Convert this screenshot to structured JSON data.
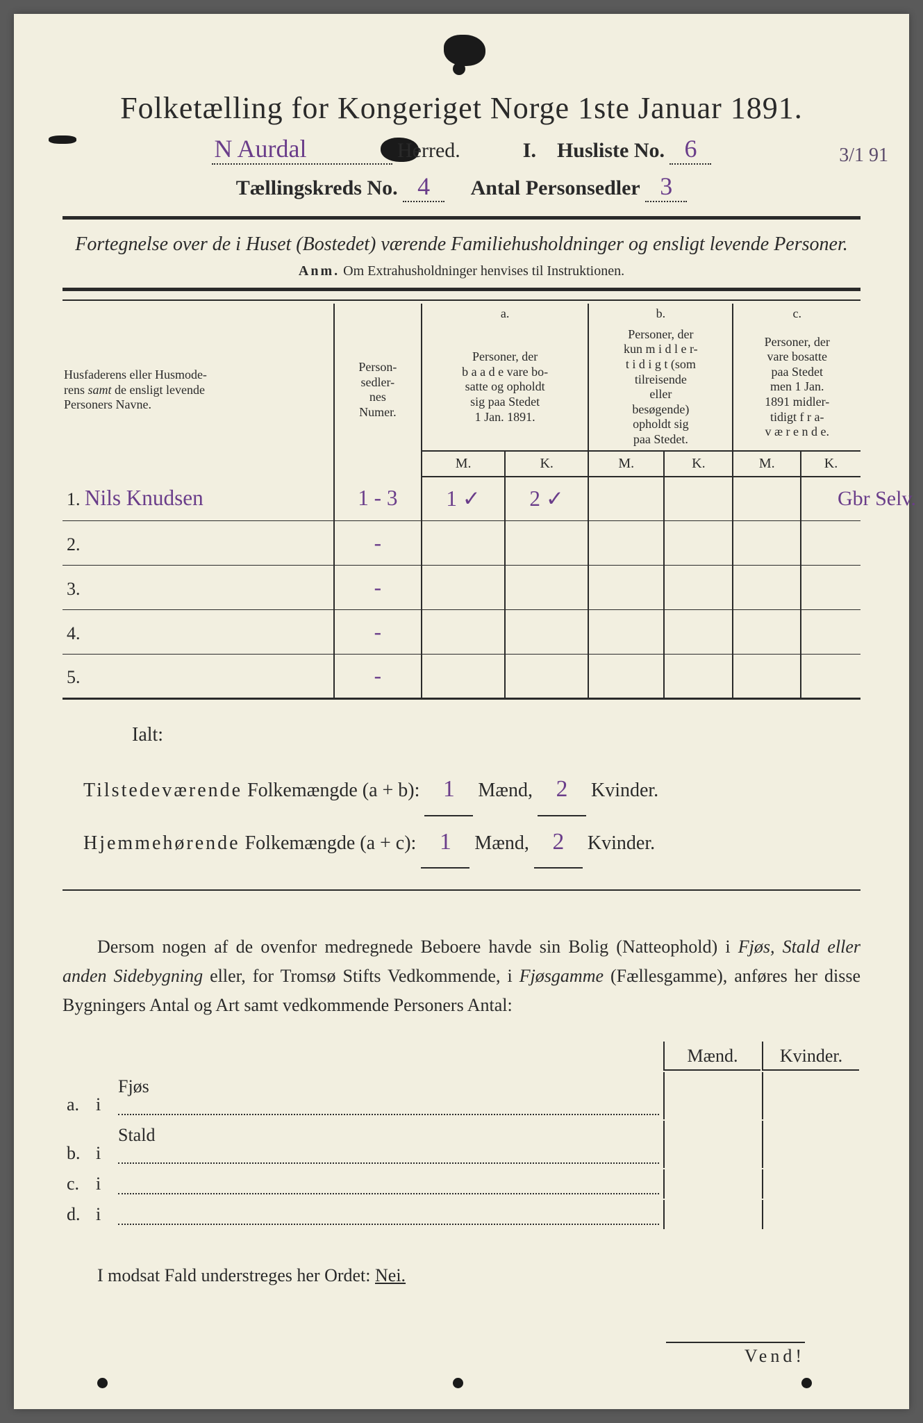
{
  "title": "Folketælling for Kongeriget Norge 1ste Januar 1891.",
  "header": {
    "herred_value": "N Aurdal",
    "herred_label": "Herred.",
    "skjema_label": "I.",
    "husliste_label": "Husliste No.",
    "husliste_value": "6",
    "date_margin": "3/1 91",
    "kreds_label": "Tællingskreds No.",
    "kreds_value": "4",
    "antal_label": "Antal Personsedler",
    "antal_value": "3"
  },
  "subtitle": "Fortegnelse over de i Huset (Bostedet) værende Familiehusholdninger og ensligt levende Personer.",
  "anm_label": "Anm.",
  "anm_text": "Om Extrahusholdninger henvises til Instruktionen.",
  "table": {
    "col_name": "Husfaderens eller Husmoderens samt de ensligt levende Personers Navne.",
    "col_numer": "Person-sedler-nes Numer.",
    "col_a_label": "a.",
    "col_a_text": "Personer, der baade vare bosatte og opholdt sig paa Stedet 1 Jan. 1891.",
    "col_b_label": "b.",
    "col_b_text": "Personer, der kun midlertidigt (som tilreisende eller besøgende) opholdt sig paa Stedet.",
    "col_c_label": "c.",
    "col_c_text": "Personer, der vare bosatte paa Stedet men 1 Jan. 1891 midlertidigt fraværende.",
    "mk_m": "M.",
    "mk_k": "K.",
    "rows": [
      {
        "n": "1.",
        "name": "Nils Knudsen",
        "numer": "1 - 3",
        "a_m": "1 ✓",
        "a_k": "2 ✓",
        "b_m": "",
        "b_k": "",
        "c_m": "",
        "c_k": "",
        "note": "Gbr Selv."
      },
      {
        "n": "2.",
        "name": "",
        "numer": "-",
        "a_m": "",
        "a_k": "",
        "b_m": "",
        "b_k": "",
        "c_m": "",
        "c_k": "",
        "note": ""
      },
      {
        "n": "3.",
        "name": "",
        "numer": "-",
        "a_m": "",
        "a_k": "",
        "b_m": "",
        "b_k": "",
        "c_m": "",
        "c_k": "",
        "note": ""
      },
      {
        "n": "4.",
        "name": "",
        "numer": "-",
        "a_m": "",
        "a_k": "",
        "b_m": "",
        "b_k": "",
        "c_m": "",
        "c_k": "",
        "note": ""
      },
      {
        "n": "5.",
        "name": "",
        "numer": "-",
        "a_m": "",
        "a_k": "",
        "b_m": "",
        "b_k": "",
        "c_m": "",
        "c_k": "",
        "note": ""
      }
    ]
  },
  "totals": {
    "ialt": "Ialt:",
    "line1_label": "Tilstedeværende Folkemængde (a + b):",
    "line2_label": "Hjemmehørende Folkemængde (a + c):",
    "maend": "Mænd,",
    "kvinder": "Kvinder.",
    "l1_m": "1",
    "l1_k": "2",
    "l2_m": "1",
    "l2_k": "2"
  },
  "para": "Dersom nogen af de ovenfor medregnede Beboere havde sin Bolig (Natteophold) i Fjøs, Stald eller anden Sidebygning eller, for Tromsø Stifts Vedkommende, i Fjøsgamme (Fællesgamme), anføres her disse Bygningers Antal og Art samt vedkommende Personers Antal:",
  "subtable": {
    "hdr_m": "Mænd.",
    "hdr_k": "Kvinder.",
    "rows": [
      {
        "k": "a.",
        "i": "i",
        "label": "Fjøs"
      },
      {
        "k": "b.",
        "i": "i",
        "label": "Stald"
      },
      {
        "k": "c.",
        "i": "i",
        "label": ""
      },
      {
        "k": "d.",
        "i": "i",
        "label": ""
      }
    ]
  },
  "closing_pre": "I modsat Fald understreges her Ordet: ",
  "closing_word": "Nei.",
  "vend": "Vend!",
  "colors": {
    "paper": "#f2efe0",
    "ink": "#2a2a2a",
    "handwriting": "#6a3d8a"
  }
}
